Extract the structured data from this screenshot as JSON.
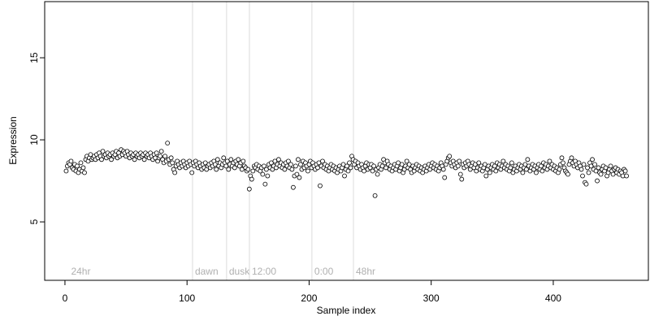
{
  "chart_data": {
    "type": "scatter",
    "xlabel": "Sample index",
    "ylabel": "Expression",
    "xlim": [
      -16.6,
      477.9
    ],
    "ylim": [
      1.44,
      18.42
    ],
    "xticks": [
      0,
      100,
      200,
      300,
      400
    ],
    "yticks": [
      5,
      10,
      15
    ],
    "color": "#ffffff",
    "edgecolor": "#000000",
    "annotations": [
      {
        "x": 3,
        "label": "24hr",
        "show_line": false
      },
      {
        "x": 104.5,
        "label": "dawn",
        "show_line": true
      },
      {
        "x": 132.4,
        "label": "dusk",
        "show_line": true
      },
      {
        "x": 151.1,
        "label": "12:00",
        "show_line": true
      },
      {
        "x": 202.3,
        "label": "0:00",
        "show_line": true
      },
      {
        "x": 236.3,
        "label": "48hr",
        "show_line": true
      }
    ],
    "x": [
      1,
      2,
      3,
      4,
      5,
      6,
      7,
      8,
      9,
      10,
      11,
      12,
      13,
      14,
      15,
      16,
      17,
      18,
      19,
      20,
      21,
      22,
      23,
      24,
      25,
      26,
      27,
      28,
      29,
      30,
      31,
      32,
      33,
      34,
      35,
      36,
      37,
      38,
      39,
      40,
      41,
      42,
      43,
      44,
      45,
      46,
      47,
      48,
      49,
      50,
      51,
      52,
      53,
      54,
      55,
      56,
      57,
      58,
      59,
      60,
      61,
      62,
      63,
      64,
      65,
      66,
      67,
      68,
      69,
      70,
      71,
      72,
      73,
      74,
      75,
      76,
      77,
      78,
      79,
      80,
      81,
      82,
      83,
      84,
      85,
      86,
      87,
      88,
      89,
      90,
      91,
      92,
      93,
      94,
      95,
      96,
      97,
      98,
      99,
      100,
      101,
      102,
      103,
      104,
      105,
      106,
      107,
      108,
      109,
      110,
      111,
      112,
      113,
      114,
      115,
      116,
      117,
      118,
      119,
      120,
      121,
      122,
      123,
      124,
      125,
      126,
      127,
      128,
      129,
      130,
      131,
      132,
      133,
      134,
      135,
      136,
      137,
      138,
      139,
      140,
      141,
      142,
      143,
      144,
      145,
      146,
      147,
      148,
      149,
      150,
      151,
      152,
      153,
      154,
      155,
      156,
      157,
      158,
      159,
      160,
      161,
      162,
      163,
      164,
      165,
      166,
      167,
      168,
      169,
      170,
      171,
      172,
      173,
      174,
      175,
      176,
      177,
      178,
      179,
      180,
      181,
      182,
      183,
      184,
      185,
      186,
      187,
      188,
      189,
      190,
      191,
      192,
      193,
      194,
      195,
      196,
      197,
      198,
      199,
      200,
      201,
      202,
      203,
      204,
      205,
      206,
      207,
      208,
      209,
      210,
      211,
      212,
      213,
      214,
      215,
      216,
      217,
      218,
      219,
      220,
      221,
      222,
      223,
      224,
      225,
      226,
      227,
      228,
      229,
      230,
      231,
      232,
      233,
      234,
      235,
      236,
      237,
      238,
      239,
      240,
      241,
      242,
      243,
      244,
      245,
      246,
      247,
      248,
      249,
      250,
      251,
      252,
      253,
      254,
      255,
      256,
      257,
      258,
      259,
      260,
      261,
      262,
      263,
      264,
      265,
      266,
      267,
      268,
      269,
      270,
      271,
      272,
      273,
      274,
      275,
      276,
      277,
      278,
      279,
      280,
      281,
      282,
      283,
      284,
      285,
      286,
      287,
      288,
      289,
      290,
      291,
      292,
      293,
      294,
      295,
      296,
      297,
      298,
      299,
      300,
      301,
      302,
      303,
      304,
      305,
      306,
      307,
      308,
      309,
      310,
      311,
      312,
      313,
      314,
      315,
      316,
      317,
      318,
      319,
      320,
      321,
      322,
      323,
      324,
      325,
      326,
      327,
      328,
      329,
      330,
      331,
      332,
      333,
      334,
      335,
      336,
      337,
      338,
      339,
      340,
      341,
      342,
      343,
      344,
      345,
      346,
      347,
      348,
      349,
      350,
      351,
      352,
      353,
      354,
      355,
      356,
      357,
      358,
      359,
      360,
      361,
      362,
      363,
      364,
      365,
      366,
      367,
      368,
      369,
      370,
      371,
      372,
      373,
      374,
      375,
      376,
      377,
      378,
      379,
      380,
      381,
      382,
      383,
      384,
      385,
      386,
      387,
      388,
      389,
      390,
      391,
      392,
      393,
      394,
      395,
      396,
      397,
      398,
      399,
      400,
      401,
      402,
      403,
      404,
      405,
      406,
      407,
      408,
      409,
      410,
      411,
      412,
      413,
      414,
      415,
      416,
      417,
      418,
      419,
      420,
      421,
      422,
      423,
      424,
      425,
      426,
      427,
      428,
      429,
      430,
      431,
      432,
      433,
      434,
      435,
      436,
      437,
      438,
      439,
      440,
      441,
      442,
      443,
      444,
      445,
      446,
      447,
      448,
      449,
      450,
      451,
      452,
      453,
      454,
      455,
      456,
      457,
      458,
      459,
      460
    ],
    "values": [
      8.1,
      8.4,
      8.6,
      8.5,
      8.7,
      8.3,
      8.2,
      8.5,
      8.1,
      8.4,
      8.0,
      8.2,
      8.6,
      8.1,
      8.3,
      8.0,
      8.8,
      9.0,
      8.7,
      8.9,
      9.1,
      8.8,
      8.9,
      9.0,
      8.8,
      9.1,
      8.9,
      9.2,
      9.0,
      8.8,
      9.3,
      9.0,
      9.1,
      8.9,
      9.2,
      9.0,
      9.1,
      8.8,
      9.2,
      9.0,
      9.1,
      9.3,
      8.9,
      9.2,
      9.0,
      9.4,
      9.1,
      9.3,
      9.2,
      9.0,
      9.3,
      9.1,
      8.9,
      9.2,
      9.0,
      9.1,
      8.8,
      9.2,
      9.0,
      9.1,
      8.9,
      9.2,
      9.0,
      9.1,
      8.8,
      9.2,
      9.0,
      9.1,
      8.9,
      9.2,
      9.0,
      8.8,
      9.1,
      8.9,
      9.2,
      8.7,
      8.9,
      9.0,
      9.3,
      8.8,
      8.6,
      9.0,
      8.7,
      9.8,
      8.8,
      8.5,
      8.9,
      8.6,
      8.2,
      8.0,
      8.4,
      8.7,
      8.5,
      8.3,
      8.6,
      8.4,
      8.7,
      8.5,
      8.3,
      8.6,
      8.4,
      8.7,
      8.5,
      8.0,
      8.6,
      8.4,
      8.7,
      8.5,
      8.3,
      8.6,
      8.4,
      8.2,
      8.5,
      8.3,
      8.6,
      8.2,
      8.4,
      8.5,
      8.3,
      8.6,
      8.4,
      8.7,
      8.5,
      8.2,
      8.8,
      8.4,
      8.6,
      8.3,
      8.5,
      8.9,
      8.6,
      8.4,
      8.7,
      8.2,
      8.5,
      8.8,
      8.4,
      8.6,
      8.3,
      8.7,
      8.5,
      8.8,
      8.4,
      8.6,
      8.2,
      8.7,
      8.4,
      8.3,
      8.1,
      8.2,
      7.0,
      7.8,
      7.6,
      8.1,
      8.4,
      8.3,
      8.5,
      8.2,
      8.4,
      8.1,
      8.3,
      7.9,
      8.4,
      7.3,
      8.2,
      7.8,
      8.5,
      8.3,
      8.6,
      8.2,
      8.4,
      8.7,
      8.3,
      8.5,
      8.8,
      8.4,
      8.6,
      8.3,
      8.5,
      8.2,
      8.6,
      8.4,
      8.7,
      8.3,
      8.5,
      8.2,
      7.1,
      7.8,
      8.4,
      7.9,
      8.8,
      7.7,
      8.5,
      8.2,
      8.7,
      8.3,
      8.6,
      8.4,
      8.1,
      8.5,
      8.7,
      8.3,
      8.6,
      8.4,
      8.2,
      8.5,
      8.3,
      8.6,
      7.2,
      8.4,
      8.7,
      8.3,
      8.5,
      8.2,
      8.4,
      8.1,
      8.3,
      8.5,
      8.2,
      8.4,
      8.1,
      8.3,
      8.0,
      8.2,
      8.4,
      8.1,
      8.3,
      8.5,
      7.8,
      8.2,
      8.4,
      8.1,
      8.6,
      8.3,
      9.0,
      8.8,
      8.5,
      8.7,
      8.3,
      8.6,
      8.4,
      8.2,
      8.5,
      8.3,
      8.1,
      8.4,
      8.6,
      8.2,
      8.5,
      8.3,
      8.5,
      8.1,
      8.4,
      6.6,
      8.2,
      7.9,
      8.3,
      8.5,
      8.2,
      8.4,
      8.8,
      8.6,
      8.3,
      8.7,
      8.5,
      8.2,
      8.4,
      8.1,
      8.3,
      8.5,
      8.2,
      8.4,
      8.6,
      8.1,
      8.3,
      8.5,
      8.0,
      8.2,
      8.4,
      8.7,
      8.3,
      8.5,
      8.2,
      8.0,
      8.4,
      8.1,
      8.3,
      8.5,
      8.2,
      8.4,
      8.1,
      8.3,
      8.0,
      8.2,
      8.4,
      8.1,
      8.3,
      8.5,
      8.2,
      8.4,
      8.6,
      8.3,
      8.5,
      8.2,
      8.4,
      8.1,
      8.3,
      8.6,
      8.4,
      8.2,
      7.7,
      8.5,
      8.7,
      8.9,
      9.0,
      8.6,
      8.4,
      8.7,
      8.5,
      8.3,
      8.6,
      8.4,
      8.7,
      7.9,
      7.6,
      8.5,
      8.3,
      8.6,
      8.4,
      8.7,
      8.5,
      8.2,
      8.4,
      8.6,
      8.3,
      8.5,
      8.1,
      8.3,
      8.6,
      8.2,
      8.4,
      8.1,
      8.3,
      8.5,
      7.8,
      8.2,
      8.4,
      8.0,
      8.3,
      8.5,
      8.2,
      8.4,
      8.1,
      8.6,
      8.3,
      8.5,
      8.2,
      8.4,
      8.7,
      8.3,
      8.5,
      8.2,
      8.4,
      8.1,
      8.3,
      8.6,
      8.0,
      8.2,
      8.4,
      8.1,
      8.3,
      8.5,
      8.2,
      8.4,
      8.0,
      8.3,
      8.5,
      8.2,
      8.8,
      8.4,
      8.1,
      8.3,
      8.5,
      8.2,
      8.4,
      8.0,
      8.3,
      8.5,
      8.2,
      8.4,
      8.1,
      8.6,
      8.3,
      8.5,
      8.2,
      8.4,
      8.7,
      8.3,
      8.5,
      8.2,
      8.4,
      8.1,
      8.3,
      8.0,
      8.2,
      8.5,
      8.9,
      8.6,
      8.3,
      8.1,
      8.0,
      7.9,
      8.5,
      8.7,
      8.9,
      8.6,
      8.4,
      8.7,
      8.5,
      8.3,
      8.6,
      8.4,
      8.2,
      7.8,
      8.5,
      7.4,
      7.3,
      8.3,
      8.0,
      8.6,
      8.4,
      8.8,
      8.2,
      8.5,
      8.1,
      7.5,
      8.3,
      8.0,
      7.9,
      8.2,
      8.4,
      8.1,
      8.3,
      7.8,
      8.0,
      8.2,
      8.4,
      8.1,
      7.9,
      8.2,
      8.3,
      8.0,
      8.2,
      7.9,
      8.1,
      8.0,
      7.8,
      8.2,
      8.1,
      7.8
    ]
  }
}
